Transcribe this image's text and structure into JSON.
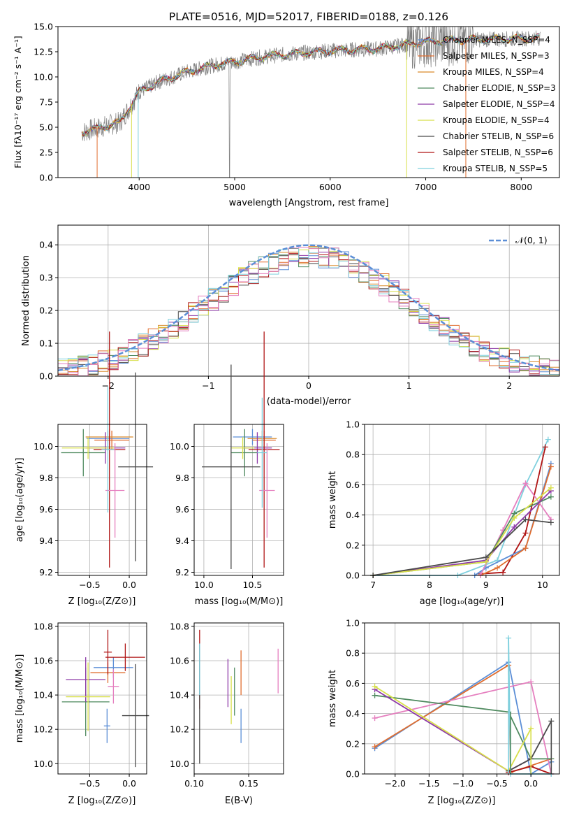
{
  "colors": {
    "chabrier_miles": "#5b8ed6",
    "salpeter_miles": "#e06d2e",
    "kroupa_miles": "#d98b2b",
    "chabrier_elodie": "#4f8a5f",
    "salpeter_elodie": "#8e3aa8",
    "kroupa_elodie": "#d8df4a",
    "chabrier_stelib": "#4a4a4a",
    "salpeter_stelib": "#b01515",
    "kroupa_stelib": "#7fd0de",
    "pink": "#e57fbf",
    "gray": "#808080",
    "normal": "#5b8ed6"
  },
  "chart_data": [
    {
      "id": "spectrum",
      "type": "line",
      "title": "PLATE=0516, MJD=52017, FIBERID=0188, z=0.126",
      "xlabel": "wavelength [Angstrom, rest frame]",
      "ylabel": "Flux [fλ10⁻¹⁷ erg cm⁻² s⁻¹ A⁻¹]",
      "xlim": [
        3150,
        8400
      ],
      "ylim": [
        0,
        15
      ],
      "xticks": [
        "4000",
        "5000",
        "6000",
        "7000",
        "8000"
      ],
      "yticks": [
        "0.0",
        "2.5",
        "5.0",
        "7.5",
        "10.0",
        "12.5",
        "15.0"
      ],
      "legend_position": "right",
      "legend": [
        {
          "label": "Chabrier MILES, N_SSP=4",
          "color": "#5b8ed6"
        },
        {
          "label": "Salpeter MILES, N_SSP=3",
          "color": "#e06d2e"
        },
        {
          "label": "Kroupa MILES, N_SSP=4",
          "color": "#d98b2b"
        },
        {
          "label": "Chabrier ELODIE, N_SSP=3",
          "color": "#4f8a5f"
        },
        {
          "label": "Salpeter ELODIE, N_SSP=4",
          "color": "#8e3aa8"
        },
        {
          "label": "Kroupa ELODIE, N_SSP=4",
          "color": "#d8df4a"
        },
        {
          "label": "Chabrier STELIB, N_SSP=6",
          "color": "#4a4a4a"
        },
        {
          "label": "Salpeter STELIB, N_SSP=6",
          "color": "#b01515"
        },
        {
          "label": "Kroupa STELIB, N_SSP=5",
          "color": "#7fd0de"
        }
      ],
      "model_curve": {
        "x": [
          3400,
          3600,
          3800,
          4000,
          4200,
          4500,
          4800,
          5000,
          5300,
          5600,
          6000,
          6500,
          7000,
          7500,
          8000,
          8200
        ],
        "y": [
          4.5,
          5.0,
          5.5,
          8.5,
          9.5,
          10.5,
          11.2,
          11.5,
          12.0,
          12.3,
          12.6,
          12.8,
          13.5,
          13.7,
          13.8,
          13.9
        ]
      }
    },
    {
      "id": "residuals",
      "type": "line",
      "xlabel": "(data-model)/error",
      "ylabel": "Normed distribution",
      "xlim": [
        -2.5,
        2.5
      ],
      "ylim": [
        0,
        0.46
      ],
      "xticks": [
        "−2",
        "−1",
        "0",
        "1",
        "2"
      ],
      "yticks": [
        "0.0",
        "0.1",
        "0.2",
        "0.3",
        "0.4"
      ],
      "grid": true,
      "legend_label": "𝒩(0, 1)",
      "legend_position": "top-right"
    },
    {
      "id": "age_vs_Z",
      "type": "scatter",
      "xlabel": "Z [log₁₀(Z/Z⊙)]",
      "ylabel": "age  [log₁₀(age/yr)]",
      "xlim": [
        -0.9,
        0.22
      ],
      "ylim": [
        9.18,
        10.14
      ],
      "xticks": [
        "−0.5",
        "0.0"
      ],
      "yticks": [
        "9.2",
        "9.4",
        "9.6",
        "9.8",
        "10.0"
      ],
      "points": [
        {
          "x": -0.27,
          "y": 10.05,
          "xerr": 0.27,
          "yerr": 0.05,
          "color": "#5b8ed6"
        },
        {
          "x": -0.22,
          "y": 10.04,
          "xerr": 0.22,
          "yerr": 0.06,
          "color": "#e06d2e"
        },
        {
          "x": -0.25,
          "y": 10.06,
          "xerr": 0.3,
          "yerr": 0.05,
          "color": "#d98b2b"
        },
        {
          "x": -0.58,
          "y": 9.96,
          "xerr": 0.28,
          "yerr": 0.15,
          "color": "#4f8a5f"
        },
        {
          "x": -0.3,
          "y": 9.99,
          "xerr": 0.25,
          "yerr": 0.1,
          "color": "#8e3aa8"
        },
        {
          "x": -0.52,
          "y": 9.99,
          "xerr": 0.33,
          "yerr": 0.07,
          "color": "#d8df4a"
        },
        {
          "x": 0.08,
          "y": 9.87,
          "xerr": 0.22,
          "yerr": 0.6,
          "color": "#4a4a4a"
        },
        {
          "x": -0.25,
          "y": 9.98,
          "xerr": 0.2,
          "yerr": 0.75,
          "color": "#b01515"
        },
        {
          "x": -0.18,
          "y": 9.72,
          "xerr": 0.12,
          "yerr": 0.3,
          "color": "#e57fbf"
        },
        {
          "x": -0.27,
          "y": 9.98,
          "xerr": 0.08,
          "yerr": 0.4,
          "color": "#7fd0de"
        }
      ]
    },
    {
      "id": "age_vs_mass",
      "type": "scatter",
      "xlabel": "mass [log₁₀(M/M⊙)]",
      "ylabel": "",
      "xlim": [
        9.9,
        10.82
      ],
      "ylim": [
        9.18,
        10.14
      ],
      "xticks": [
        "10.0",
        "10.5"
      ],
      "yticks": [
        "9.2",
        "9.4",
        "9.6",
        "9.8",
        "10.0"
      ],
      "points": [
        {
          "x": 10.5,
          "y": 10.06,
          "xerr": 0.2,
          "yerr": 0.05,
          "color": "#5b8ed6"
        },
        {
          "x": 10.62,
          "y": 10.04,
          "xerr": 0.12,
          "yerr": 0.06,
          "color": "#e06d2e"
        },
        {
          "x": 10.6,
          "y": 10.05,
          "xerr": 0.15,
          "yerr": 0.05,
          "color": "#d98b2b"
        },
        {
          "x": 10.42,
          "y": 9.96,
          "xerr": 0.14,
          "yerr": 0.15,
          "color": "#4f8a5f"
        },
        {
          "x": 10.55,
          "y": 9.99,
          "xerr": 0.15,
          "yerr": 0.1,
          "color": "#8e3aa8"
        },
        {
          "x": 10.4,
          "y": 9.99,
          "xerr": 0.12,
          "yerr": 0.07,
          "color": "#d8df4a"
        },
        {
          "x": 10.28,
          "y": 9.87,
          "xerr": 0.3,
          "yerr": 0.65,
          "color": "#4a4a4a"
        },
        {
          "x": 10.62,
          "y": 9.98,
          "xerr": 0.16,
          "yerr": 0.75,
          "color": "#b01515"
        },
        {
          "x": 10.65,
          "y": 9.72,
          "xerr": 0.08,
          "yerr": 0.3,
          "color": "#e57fbf"
        },
        {
          "x": 10.6,
          "y": 9.96,
          "xerr": 0.05,
          "yerr": 0.35,
          "color": "#7fd0de"
        }
      ]
    },
    {
      "id": "mass_weight_vs_age",
      "type": "line",
      "xlabel": "age  [log₁₀(age/yr)]",
      "ylabel": "mass weight",
      "xlim": [
        6.85,
        10.3
      ],
      "ylim": [
        0,
        1.0
      ],
      "xticks": [
        "7",
        "8",
        "9",
        "10"
      ],
      "yticks": [
        "0.0",
        "0.2",
        "0.4",
        "0.6",
        "0.8",
        "1.0"
      ],
      "grid": true,
      "series": [
        {
          "color": "#7fd0de",
          "x": [
            7.0,
            8.5,
            9.2,
            9.7,
            10.1
          ],
          "y": [
            0.0,
            0.0,
            0.1,
            0.6,
            0.9
          ]
        },
        {
          "color": "#b01515",
          "x": [
            8.9,
            9.3,
            9.7,
            10.05
          ],
          "y": [
            0.01,
            0.02,
            0.28,
            0.85
          ]
        },
        {
          "color": "#5b8ed6",
          "x": [
            8.8,
            9.0,
            9.7,
            10.15
          ],
          "y": [
            0.0,
            0.05,
            0.18,
            0.74
          ]
        },
        {
          "color": "#e06d2e",
          "x": [
            8.9,
            9.2,
            9.7,
            10.15
          ],
          "y": [
            0.0,
            0.05,
            0.18,
            0.72
          ]
        },
        {
          "color": "#e57fbf",
          "x": [
            8.9,
            9.3,
            9.7,
            10.15
          ],
          "y": [
            0.0,
            0.3,
            0.61,
            0.37
          ]
        },
        {
          "color": "#4f8a5f",
          "x": [
            7.0,
            9.0,
            9.5,
            10.15
          ],
          "y": [
            0.0,
            0.09,
            0.41,
            0.52
          ]
        },
        {
          "color": "#8e3aa8",
          "x": [
            7.0,
            9.0,
            9.5,
            10.15
          ],
          "y": [
            0.0,
            0.1,
            0.32,
            0.56
          ]
        },
        {
          "color": "#d8df4a",
          "x": [
            7.0,
            9.0,
            9.5,
            10.15
          ],
          "y": [
            0.0,
            0.09,
            0.38,
            0.58
          ]
        },
        {
          "color": "#4a4a4a",
          "x": [
            7.0,
            9.0,
            9.7,
            10.15
          ],
          "y": [
            0.0,
            0.12,
            0.37,
            0.35
          ]
        }
      ]
    },
    {
      "id": "mass_vs_Z",
      "type": "scatter",
      "xlabel": "Z [log₁₀(Z/Z⊙)]",
      "ylabel": "mass [log₁₀(M/M⊙)]",
      "xlim": [
        -0.9,
        0.22
      ],
      "ylim": [
        9.94,
        10.82
      ],
      "xticks": [
        "−0.5",
        "0.0"
      ],
      "yticks": [
        "10.0",
        "10.2",
        "10.4",
        "10.6",
        "10.8"
      ],
      "points": [
        {
          "x": -0.2,
          "y": 10.56,
          "xerr": 0.25,
          "yerr": 0.06,
          "color": "#5b8ed6"
        },
        {
          "x": -0.27,
          "y": 10.53,
          "xerr": 0.22,
          "yerr": 0.06,
          "color": "#e06d2e"
        },
        {
          "x": -0.05,
          "y": 10.62,
          "xerr": 0.25,
          "yerr": 0.08,
          "color": "#b01515"
        },
        {
          "x": -0.55,
          "y": 10.36,
          "xerr": 0.3,
          "yerr": 0.2,
          "color": "#4f8a5f"
        },
        {
          "x": -0.55,
          "y": 10.49,
          "xerr": 0.25,
          "yerr": 0.13,
          "color": "#8e3aa8"
        },
        {
          "x": -0.52,
          "y": 10.39,
          "xerr": 0.28,
          "yerr": 0.2,
          "color": "#d8df4a"
        },
        {
          "x": 0.08,
          "y": 10.28,
          "xerr": 0.17,
          "yerr": 0.3,
          "color": "#4a4a4a"
        },
        {
          "x": -0.27,
          "y": 10.65,
          "xerr": 0.05,
          "yerr": 0.13,
          "color": "#b01515"
        },
        {
          "x": -0.2,
          "y": 10.45,
          "xerr": 0.07,
          "yerr": 0.1,
          "color": "#e57fbf"
        },
        {
          "x": -0.28,
          "y": 10.22,
          "xerr": 0.04,
          "yerr": 0.1,
          "color": "#5b8ed6"
        }
      ]
    },
    {
      "id": "mass_vs_ebv",
      "type": "scatter",
      "xlabel": "E(B-V)",
      "ylabel": "",
      "xlim": [
        0.1,
        0.182
      ],
      "ylim": [
        9.94,
        10.82
      ],
      "xticks": [
        "0.10",
        "0.15"
      ],
      "yticks": [
        "10.0",
        "10.2",
        "10.4",
        "10.6",
        "10.8"
      ],
      "points": [
        {
          "x": 0.105,
          "y": 10.55,
          "yerr": 0.23,
          "color": "#b01515"
        },
        {
          "x": 0.105,
          "y": 10.35,
          "yerr": 0.35,
          "color": "#4a4a4a"
        },
        {
          "x": 0.105,
          "y": 10.55,
          "yerr": 0.15,
          "color": "#7fd0de"
        },
        {
          "x": 0.131,
          "y": 10.47,
          "yerr": 0.14,
          "color": "#8e3aa8"
        },
        {
          "x": 0.134,
          "y": 10.37,
          "yerr": 0.14,
          "color": "#d8df4a"
        },
        {
          "x": 0.137,
          "y": 10.42,
          "yerr": 0.14,
          "color": "#4f8a5f"
        },
        {
          "x": 0.143,
          "y": 10.53,
          "yerr": 0.13,
          "color": "#e06d2e"
        },
        {
          "x": 0.143,
          "y": 10.22,
          "yerr": 0.1,
          "color": "#5b8ed6"
        },
        {
          "x": 0.177,
          "y": 10.54,
          "yerr": 0.13,
          "color": "#e57fbf"
        }
      ]
    },
    {
      "id": "mass_weight_vs_Z",
      "type": "line",
      "xlabel": "Z [log₁₀(Z/Z⊙)]",
      "ylabel": "mass weight",
      "xlim": [
        -2.45,
        0.42
      ],
      "ylim": [
        0,
        1.0
      ],
      "xticks": [
        "−2.0",
        "−1.5",
        "−1.0",
        "−0.5",
        "0.0"
      ],
      "yticks": [
        "0.0",
        "0.2",
        "0.4",
        "0.6",
        "0.8",
        "1.0"
      ],
      "grid": true,
      "series": [
        {
          "color": "#5b8ed6",
          "x": [
            -2.3,
            -0.33,
            0.0,
            0.3
          ],
          "y": [
            0.17,
            0.74,
            0.0,
            0.08
          ]
        },
        {
          "color": "#e06d2e",
          "x": [
            -2.3,
            -0.33,
            -0.3,
            0.3
          ],
          "y": [
            0.18,
            0.72,
            0.01,
            0.1
          ]
        },
        {
          "color": "#e57fbf",
          "x": [
            -2.3,
            0.0,
            0.3
          ],
          "y": [
            0.37,
            0.61,
            0.0
          ]
        },
        {
          "color": "#4f8a5f",
          "x": [
            -2.3,
            -0.33,
            0.0,
            0.3
          ],
          "y": [
            0.52,
            0.41,
            0.1,
            0.1
          ]
        },
        {
          "color": "#8e3aa8",
          "x": [
            -2.3,
            -0.33,
            0.0
          ],
          "y": [
            0.56,
            0.02,
            0.1
          ]
        },
        {
          "color": "#d8df4a",
          "x": [
            -2.3,
            -0.33,
            0.0
          ],
          "y": [
            0.58,
            0.02,
            0.3
          ]
        },
        {
          "color": "#4a4a4a",
          "x": [
            -0.33,
            0.0,
            0.3
          ],
          "y": [
            0.02,
            0.1,
            0.35
          ]
        },
        {
          "color": "#b01515",
          "x": [
            -0.33,
            0.0,
            0.3
          ],
          "y": [
            0.01,
            0.05,
            0.0
          ]
        },
        {
          "color": "#7fd0de",
          "x": [
            -0.33,
            -0.3,
            0.3
          ],
          "y": [
            0.9,
            0.0,
            0.0
          ]
        }
      ]
    }
  ]
}
